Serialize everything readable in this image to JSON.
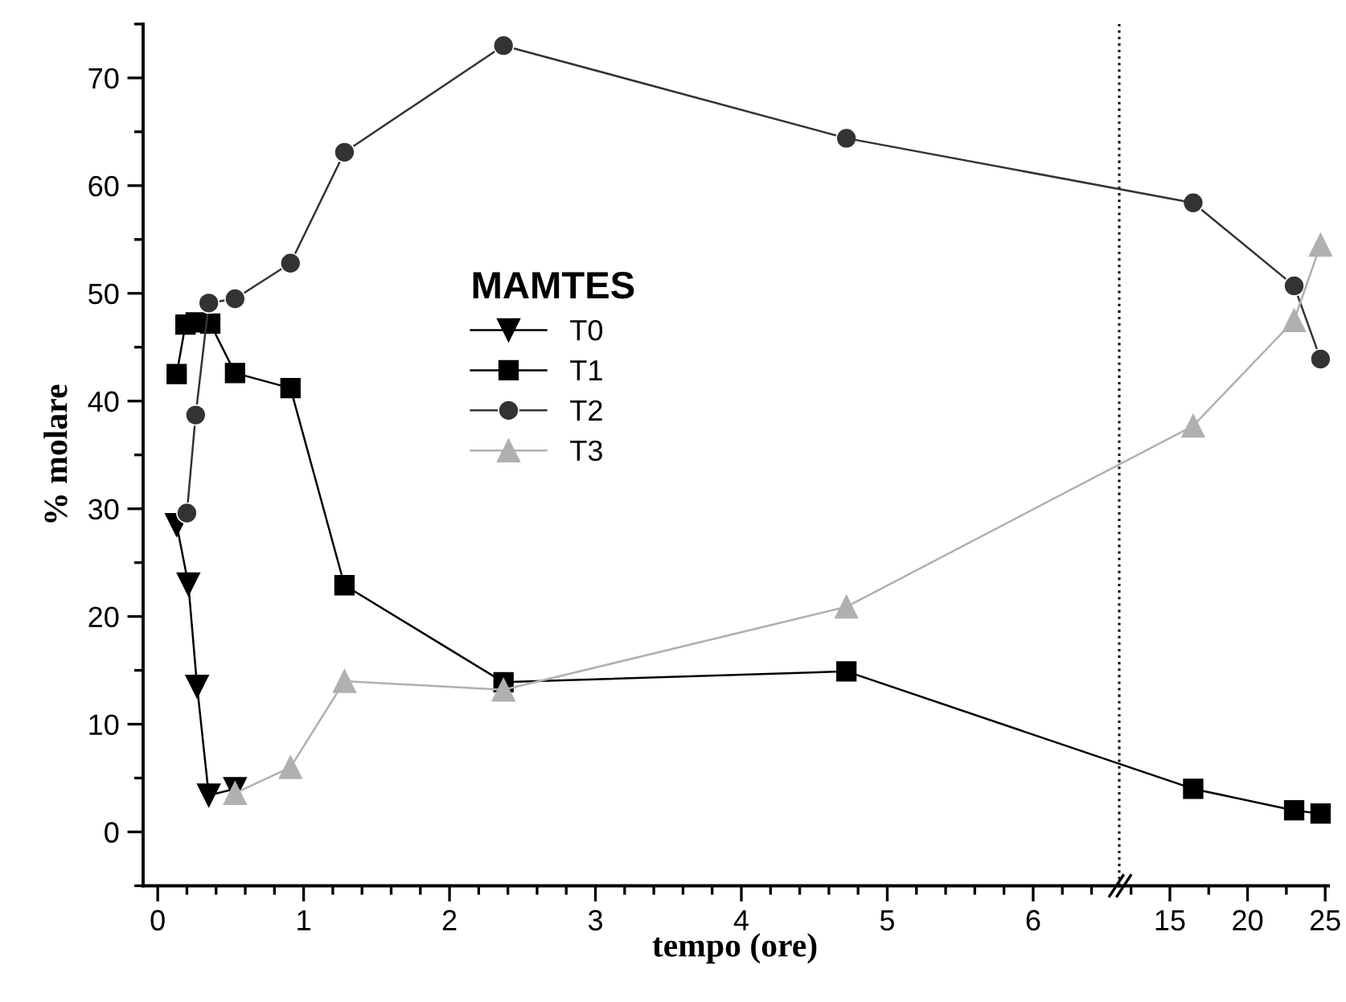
{
  "chart_data": [
    {
      "type": "line",
      "xlabel": "tempo (ore)",
      "ylabel": "% molare",
      "legend_title": "MAMTES",
      "legend": "center",
      "line_style": "solid",
      "grid": false,
      "xlim": [
        -0.1,
        6.59
      ],
      "xticks": [
        0,
        1,
        2,
        3,
        4,
        5,
        6
      ],
      "ylim": [
        -5,
        75
      ],
      "yticks": [
        0,
        10,
        20,
        30,
        40,
        50,
        60,
        70
      ],
      "series": [
        {
          "name": "T0",
          "color": "#000000",
          "marker": "triangle_down",
          "x": [
            0.13,
            0.21,
            0.27,
            0.35,
            0.53
          ],
          "values": [
            28.5,
            23.0,
            13.5,
            3.4,
            4.0
          ]
        },
        {
          "name": "T1",
          "color": "#000000",
          "marker": "square",
          "x": [
            0.13,
            0.19,
            0.26,
            0.36,
            0.53,
            0.91,
            1.28,
            2.37,
            4.72
          ],
          "values": [
            42.5,
            47.1,
            47.3,
            47.2,
            42.6,
            41.2,
            22.9,
            13.9,
            14.9
          ]
        },
        {
          "name": "T2",
          "color": "#333333",
          "marker": "circle",
          "x": [
            0.2,
            0.26,
            0.35,
            0.53,
            0.91,
            1.28,
            2.37,
            4.72
          ],
          "values": [
            29.6,
            38.7,
            49.1,
            49.5,
            52.8,
            63.1,
            73.0,
            64.4
          ]
        },
        {
          "name": "T3",
          "color": "#b0b0b0",
          "marker": "triangle",
          "x": [
            0.53,
            0.91,
            1.28,
            2.37,
            4.72
          ],
          "values": [
            3.6,
            6.0,
            14.0,
            13.2,
            20.9
          ]
        }
      ]
    },
    {
      "type": "line",
      "line_style": "solid",
      "grid": false,
      "tick_labels": "x",
      "xlim": [
        11.74,
        25.2
      ],
      "xticks": [
        15,
        20,
        25
      ],
      "ylim": [
        -5,
        75
      ],
      "ref_lines": [
        {
          "axis": "x",
          "value": 11.74,
          "label": null,
          "color": "#000000",
          "line_style": "dotted"
        }
      ],
      "series": [
        {
          "color": "#000000",
          "marker": "square",
          "x": [
            16.5,
            23.0,
            24.7
          ],
          "values": [
            4.0,
            2.0,
            1.7
          ]
        },
        {
          "color": "#333333",
          "marker": "circle",
          "x": [
            16.5,
            23.0,
            24.7
          ],
          "values": [
            58.4,
            50.7,
            43.9
          ]
        },
        {
          "color": "#b0b0b0",
          "marker": "triangle",
          "x": [
            16.5,
            23.0,
            24.7
          ],
          "values": [
            37.7,
            47.5,
            54.5
          ]
        }
      ]
    }
  ]
}
